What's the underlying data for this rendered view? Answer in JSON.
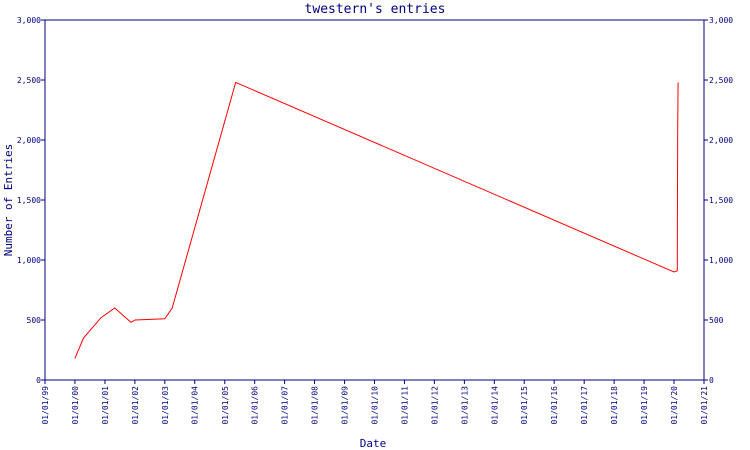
{
  "chart_data": {
    "type": "line",
    "title": "twestern's entries",
    "xlabel": "Date",
    "ylabel": "Number of Entries",
    "ylim": [
      0,
      3000
    ],
    "y_ticks": [
      0,
      500,
      1000,
      1500,
      2000,
      2500,
      3000
    ],
    "y_tick_labels": [
      "0",
      "500",
      "1,000",
      "1,500",
      "2,000",
      "2,500",
      "3,000"
    ],
    "x_ticks": [
      "1999-01-01",
      "2000-01-01",
      "2001-01-01",
      "2002-01-01",
      "2003-01-01",
      "2004-01-01",
      "2005-01-01",
      "2006-01-01",
      "2007-01-01",
      "2008-01-01",
      "2009-01-01",
      "2010-01-01",
      "2011-01-01",
      "2012-01-01",
      "2013-01-01",
      "2014-01-01",
      "2015-01-01",
      "2016-01-01",
      "2017-01-01",
      "2018-01-01",
      "2019-01-01",
      "2020-01-01",
      "2021-01-01"
    ],
    "x_tick_labels": [
      "01/01/99",
      "01/01/00",
      "01/01/01",
      "01/01/02",
      "01/01/03",
      "01/01/04",
      "01/01/05",
      "01/01/06",
      "01/01/07",
      "01/01/08",
      "01/01/09",
      "01/01/10",
      "01/01/11",
      "01/01/12",
      "01/01/13",
      "01/01/14",
      "01/01/15",
      "01/01/16",
      "01/01/17",
      "01/01/18",
      "01/01/19",
      "01/01/20",
      "01/01/21"
    ],
    "xlim": [
      "1999-01-01",
      "2021-01-01"
    ],
    "series_color": "#ff0000",
    "axis_color": "#000080",
    "series": [
      {
        "x": [
          "2000-01-01",
          "2000-04-15",
          "2000-11-15",
          "2001-05-01",
          "2001-11-15",
          "2002-01-01",
          "2003-01-01",
          "2003-04-01",
          "2005-05-15",
          "2020-01-01",
          "2020-02-10",
          "2020-02-12",
          "2020-02-15",
          "2020-02-20"
        ],
        "y": [
          180,
          350,
          520,
          600,
          480,
          500,
          510,
          600,
          2480,
          900,
          910,
          1300,
          2100,
          2480
        ]
      }
    ]
  }
}
